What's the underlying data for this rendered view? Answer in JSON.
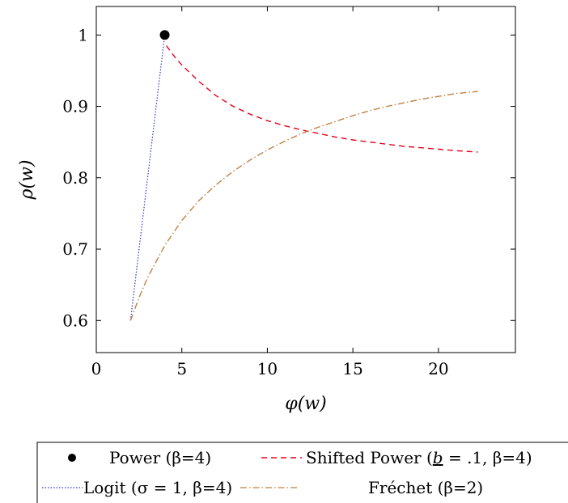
{
  "chart_data": {
    "type": "line",
    "xlabel": "φ(w)",
    "ylabel": "ρ(w)",
    "xlim": [
      0,
      24.5
    ],
    "ylim": [
      0.555,
      1.04
    ],
    "x_ticks": [
      0,
      5,
      10,
      15,
      20
    ],
    "y_ticks": [
      0.6,
      0.7,
      0.8,
      0.9,
      1
    ],
    "grid": false,
    "legend_placement": "bottom",
    "series": [
      {
        "name": "Power (β=4)",
        "style": "marker",
        "color": "#000000",
        "x": [
          4
        ],
        "y": [
          1
        ]
      },
      {
        "name": "Shifted Power (b = .1, β=4)",
        "style": "dashed",
        "color": "#e8001c",
        "x": [
          4.1,
          4.5,
          5,
          6,
          7,
          8,
          9,
          10,
          11,
          12,
          13,
          14,
          15,
          16,
          17,
          18,
          19,
          20,
          21,
          22.3
        ],
        "y": [
          0.985,
          0.972,
          0.958,
          0.935,
          0.915,
          0.9,
          0.889,
          0.88,
          0.873,
          0.867,
          0.862,
          0.857,
          0.853,
          0.85,
          0.847,
          0.844,
          0.842,
          0.84,
          0.838,
          0.836
        ]
      },
      {
        "name": "Logit (σ = 1, β=4)",
        "style": "dotted",
        "color": "#3232d2",
        "x": [
          2,
          4
        ],
        "y": [
          0.6,
          1
        ]
      },
      {
        "name": "Fréchet (β=2)",
        "style": "dashdot",
        "color": "#c08040",
        "x": [
          2,
          2.5,
          3,
          4,
          5,
          6,
          7,
          8,
          9,
          10,
          11,
          12,
          13,
          14,
          15,
          16,
          17,
          18,
          19,
          20,
          21,
          22.3
        ],
        "y": [
          0.6,
          0.632,
          0.66,
          0.705,
          0.74,
          0.768,
          0.79,
          0.809,
          0.825,
          0.839,
          0.851,
          0.862,
          0.871,
          0.879,
          0.887,
          0.894,
          0.9,
          0.905,
          0.91,
          0.914,
          0.918,
          0.921
        ]
      }
    ]
  },
  "legend": {
    "power": "Power (β=4)",
    "shifted_power_prefix": "Shifted Power (",
    "shifted_power_b": "b",
    "shifted_power_suffix": " = .1, β=4)",
    "logit": "Logit (σ = 1, β=4)",
    "frechet": "Fréchet (β=2)"
  }
}
